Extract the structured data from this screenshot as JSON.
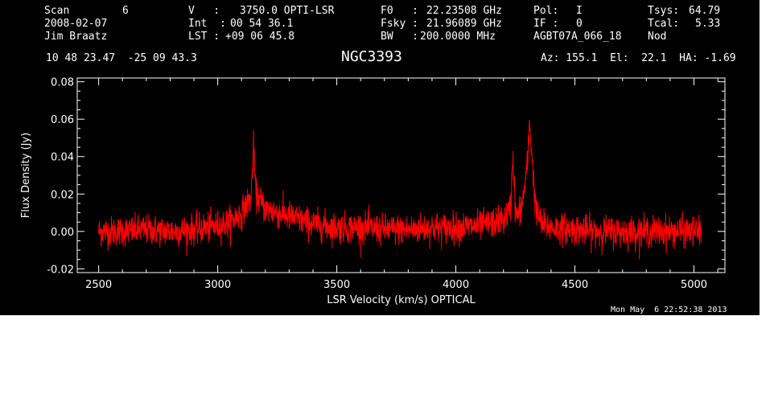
{
  "header": {
    "scan_label": "Scan",
    "scan_value": "6",
    "date": "2008-02-07",
    "observer": "Jim Braatz",
    "v_label": "V   :",
    "v_value": "3750.0 OPTI-LSR",
    "int_label": "Int  :",
    "int_value": "00 54 36.1",
    "lst_label": "LST :",
    "lst_value": "+09 06 45.8",
    "f0_label": "F0   :",
    "f0_value": "22.23508 GHz",
    "fsky_label": "Fsky :",
    "fsky_value": "21.96089 GHz",
    "bw_label": "BW   :",
    "bw_value": "200.0000 MHz",
    "pol_label": "Pol:",
    "pol_value": "I",
    "if_label": "IF :",
    "if_value": "0",
    "project": "AGBT07A_066_18",
    "tsys_label": "Tsys:",
    "tsys_value": "64.79",
    "tcal_label": "Tcal:",
    "tcal_value": "5.33",
    "procedure": "Nod",
    "coords": "10 48 23.47  -25 09 43.3",
    "az_el_ha": "Az: 155.1  El:  22.1  HA: -1.69"
  },
  "object_name": "NGC3393",
  "timestamp": "Mon May  6 22:52:38 2013",
  "colors": {
    "background": "#000000",
    "axes": "#ffffff",
    "trace": "#ff0000"
  },
  "chart_data": {
    "type": "line",
    "xlabel": "LSR Velocity (km/s) OPTICAL",
    "ylabel": "Flux Density (Jy)",
    "xlim": [
      2410,
      5130
    ],
    "ylim": [
      -0.022,
      0.082
    ],
    "x_ticks": [
      2500,
      3000,
      3500,
      4000,
      4500,
      5000
    ],
    "y_ticks": [
      -0.02,
      0.0,
      0.02,
      0.04,
      0.06,
      0.08
    ],
    "x_tick_labels": [
      "2500",
      "3000",
      "3500",
      "4000",
      "4500",
      "5000"
    ],
    "y_tick_labels": [
      "-0.02",
      "0.00",
      "0.02",
      "0.04",
      "0.06",
      "0.08"
    ],
    "grid": false,
    "series": [
      {
        "x": [
          2500,
          2600,
          2700,
          2800,
          2900,
          3000,
          3050,
          3100,
          3120,
          3140,
          3150,
          3160,
          3180,
          3200,
          3250,
          3300,
          3400,
          3500,
          3600,
          3700,
          3800,
          3900,
          4000,
          4100,
          4200,
          4230,
          4240,
          4250,
          4260,
          4280,
          4300,
          4310,
          4320,
          4330,
          4340,
          4360,
          4400,
          4500,
          4600,
          4700,
          4800,
          4900,
          5000,
          5030
        ],
        "values": [
          0.0,
          0.0,
          0.001,
          0.0,
          0.001,
          0.003,
          0.005,
          0.01,
          0.014,
          0.018,
          0.046,
          0.02,
          0.016,
          0.012,
          0.01,
          0.008,
          0.004,
          0.002,
          0.002,
          0.001,
          0.001,
          0.002,
          0.002,
          0.003,
          0.006,
          0.012,
          0.042,
          0.01,
          0.008,
          0.015,
          0.035,
          0.058,
          0.04,
          0.02,
          0.01,
          0.004,
          0.002,
          0.001,
          0.0,
          0.0,
          0.0,
          0.0,
          0.0,
          0.0
        ],
        "noise_rms": 0.004
      }
    ]
  }
}
